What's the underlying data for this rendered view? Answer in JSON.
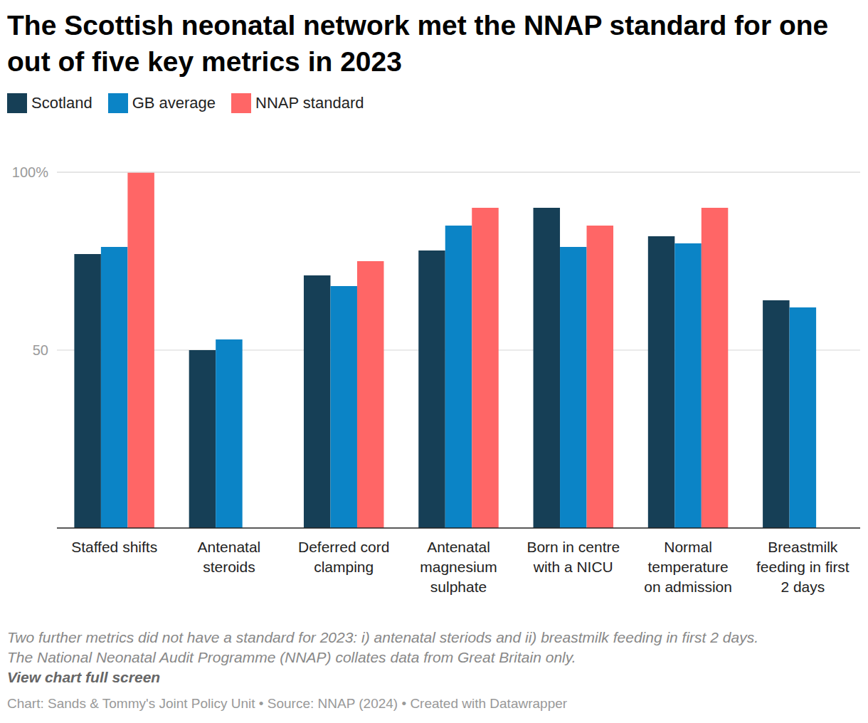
{
  "chart_data": {
    "type": "bar",
    "title": "The Scottish neonatal network met the NNAP standard for one out of five key metrics in 2023",
    "categories": [
      "Staffed shifts",
      "Antenatal steroids",
      "Deferred cord clamping",
      "Antenatal magnesium sulphate",
      "Born in centre with a NICU",
      "Normal temperature on admission",
      "Breastmilk feeding in first 2 days"
    ],
    "series": [
      {
        "name": "Scotland",
        "color": "#163f56",
        "values": [
          77,
          50,
          71,
          78,
          90,
          82,
          64
        ]
      },
      {
        "name": "GB average",
        "color": "#0b84c6",
        "values": [
          79,
          53,
          68,
          85,
          79,
          80,
          62
        ]
      },
      {
        "name": "NNAP standard",
        "color": "#ff6666",
        "values": [
          100,
          null,
          75,
          90,
          85,
          90,
          null
        ]
      }
    ],
    "ylim": [
      0,
      100
    ],
    "yticks": [
      50,
      {
        "value": 100,
        "label": "100%"
      }
    ],
    "grid": true,
    "legend": "top",
    "annotations": [
      "Two further metrics did not have a standard for 2023: i) antenatal steriods and ii) breastmilk feeding in first 2 days.",
      "The National Neonatal Audit Programme (NNAP) collates data from Great Britain only."
    ],
    "link_text": "View chart full screen",
    "source": "Chart: Sands & Tommy's Joint Policy Unit • Source: NNAP (2024) • Created with Datawrapper"
  }
}
